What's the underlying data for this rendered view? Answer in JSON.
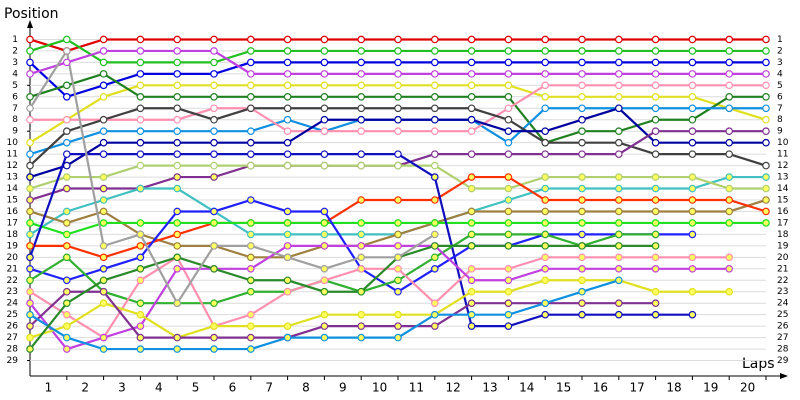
{
  "chart_data": {
    "type": "lap",
    "ylabel": "Position",
    "xlabel": "Laps",
    "x": [
      0,
      1,
      2,
      3,
      4,
      5,
      6,
      7,
      8,
      9,
      10,
      11,
      12,
      13,
      14,
      15,
      16,
      17,
      18,
      19,
      20
    ],
    "xlim": [
      0,
      20
    ],
    "xticks": [
      1,
      2,
      3,
      4,
      5,
      6,
      7,
      8,
      9,
      10,
      11,
      12,
      13,
      14,
      15,
      16,
      17,
      18,
      19,
      20
    ],
    "ylim": [
      0,
      30
    ],
    "yticks": [
      1,
      2,
      3,
      4,
      5,
      6,
      7,
      8,
      9,
      10,
      11,
      12,
      13,
      14,
      15,
      16,
      17,
      18,
      19,
      20,
      21,
      22,
      23,
      24,
      25,
      26,
      27,
      28,
      29
    ],
    "y_inverted": true,
    "grid": true,
    "series": [
      {
        "color": "#e00000",
        "values": [
          1,
          2,
          1,
          1,
          1,
          1,
          1,
          1,
          1,
          1,
          1,
          1,
          1,
          1,
          1,
          1,
          1,
          1,
          1,
          1,
          1
        ]
      },
      {
        "color": "#20c020",
        "values": [
          2,
          1,
          3,
          3,
          3,
          3,
          2,
          2,
          2,
          2,
          2,
          2,
          2,
          2,
          2,
          2,
          2,
          2,
          2,
          2,
          2
        ]
      },
      {
        "color": "#0000e0",
        "values": [
          3,
          6,
          5,
          4,
          4,
          4,
          3,
          3,
          3,
          3,
          3,
          3,
          3,
          3,
          3,
          3,
          3,
          3,
          3,
          3,
          3
        ]
      },
      {
        "color": "#c040e0",
        "values": [
          4,
          3,
          2,
          2,
          2,
          2,
          4,
          4,
          4,
          4,
          4,
          4,
          4,
          4,
          4,
          4,
          4,
          4,
          4,
          4,
          4
        ]
      },
      {
        "color": "#e0e020",
        "values": [
          10,
          8,
          6,
          5,
          5,
          5,
          5,
          5,
          5,
          5,
          5,
          5,
          5,
          5,
          6,
          6,
          6,
          6,
          6,
          7,
          8
        ]
      },
      {
        "color": "#208020",
        "values": [
          6,
          5,
          4,
          6,
          6,
          6,
          6,
          6,
          6,
          6,
          6,
          6,
          6,
          6,
          10,
          9,
          9,
          8,
          8,
          6,
          6
        ]
      },
      {
        "color": "#1090e0",
        "values": [
          11,
          10,
          9,
          9,
          9,
          9,
          9,
          8,
          9,
          8,
          8,
          8,
          8,
          10,
          7,
          7,
          7,
          7,
          7,
          7,
          7
        ]
      },
      {
        "color": "#ff90b0",
        "values": [
          8,
          8,
          8,
          8,
          8,
          7,
          7,
          9,
          9,
          9,
          9,
          9,
          9,
          7,
          5,
          5,
          5,
          5,
          5,
          5,
          5
        ]
      },
      {
        "color": "#404040",
        "values": [
          12,
          9,
          8,
          7,
          7,
          8,
          7,
          7,
          7,
          7,
          7,
          7,
          7,
          8,
          10,
          10,
          10,
          11,
          11,
          11,
          12
        ]
      },
      {
        "color": "#0000a0",
        "values": [
          13,
          12,
          10,
          10,
          10,
          10,
          10,
          10,
          8,
          8,
          8,
          8,
          8,
          9,
          9,
          8,
          7,
          10,
          10,
          10,
          10
        ]
      },
      {
        "color": "#803090",
        "values": [
          15,
          14,
          14,
          14,
          13,
          13,
          12,
          12,
          12,
          12,
          12,
          11,
          11,
          11,
          11,
          11,
          11,
          9,
          9,
          9,
          9
        ]
      },
      {
        "color": "#40c0c0",
        "values": [
          18,
          16,
          15,
          14,
          14,
          16,
          18,
          18,
          18,
          18,
          18,
          17,
          16,
          15,
          14,
          14,
          14,
          14,
          14,
          13,
          13
        ]
      },
      {
        "color": "#b0d070",
        "values": [
          14,
          13,
          13,
          12,
          12,
          12,
          12,
          12,
          12,
          12,
          12,
          12,
          14,
          14,
          13,
          13,
          13,
          13,
          13,
          14,
          14
        ]
      },
      {
        "color": "#a08040",
        "values": [
          16,
          17,
          16,
          18,
          19,
          19,
          20,
          20,
          19,
          19,
          18,
          17,
          16,
          16,
          16,
          16,
          16,
          16,
          16,
          16,
          15
        ]
      },
      {
        "color": "#ff3000",
        "values": [
          19,
          19,
          20,
          19,
          18,
          17,
          17,
          17,
          17,
          15,
          15,
          15,
          13,
          13,
          15,
          15,
          15,
          15,
          15,
          15,
          16
        ]
      },
      {
        "color": "#20e020",
        "values": [
          17,
          18,
          17,
          17,
          17,
          17,
          17,
          17,
          17,
          17,
          17,
          17,
          17,
          17,
          17,
          17,
          17,
          17,
          17,
          17,
          17
        ]
      },
      {
        "color": "#1010c0",
        "values": [
          20,
          11,
          11,
          11,
          11,
          11,
          11,
          11,
          11,
          11,
          11,
          13,
          26,
          26,
          25,
          25,
          25,
          25,
          25,
          null,
          null
        ]
      },
      {
        "color": "#2020ff",
        "values": [
          21,
          22,
          21,
          20,
          16,
          16,
          15,
          16,
          16,
          21,
          23,
          21,
          19,
          19,
          18,
          18,
          18,
          18,
          18,
          null,
          null
        ]
      },
      {
        "color": "#30b030",
        "values": [
          22,
          20,
          23,
          24,
          24,
          24,
          23,
          23,
          22,
          23,
          22,
          20,
          18,
          18,
          18,
          19,
          18,
          18,
          null,
          null,
          null
        ]
      },
      {
        "color": "#ff90b0",
        "values": [
          23,
          25,
          27,
          22,
          20,
          26,
          25,
          23,
          22,
          21,
          21,
          24,
          21,
          21,
          20,
          20,
          20,
          20,
          20,
          20,
          null
        ]
      },
      {
        "color": "#c040e0",
        "values": [
          24,
          28,
          27,
          26,
          21,
          21,
          21,
          19,
          19,
          19,
          19,
          19,
          22,
          22,
          21,
          21,
          21,
          21,
          21,
          21,
          null
        ]
      },
      {
        "color": "#e0e020",
        "values": [
          27,
          26,
          24,
          25,
          27,
          26,
          26,
          26,
          25,
          25,
          25,
          25,
          23,
          23,
          22,
          22,
          22,
          23,
          23,
          23,
          null
        ]
      },
      {
        "color": "#803090",
        "values": [
          26,
          23,
          23,
          27,
          27,
          27,
          27,
          27,
          26,
          26,
          26,
          26,
          24,
          24,
          24,
          24,
          24,
          24,
          null,
          null,
          null
        ]
      },
      {
        "color": "#1090e0",
        "values": [
          25,
          27,
          28,
          28,
          28,
          28,
          28,
          27,
          27,
          27,
          27,
          25,
          25,
          25,
          24,
          23,
          22,
          null,
          null,
          null,
          null
        ]
      },
      {
        "color": "#2a8a2a",
        "values": [
          28,
          24,
          22,
          21,
          20,
          21,
          22,
          22,
          23,
          23,
          20,
          19,
          19,
          19,
          19,
          19,
          19,
          19,
          null,
          null,
          null
        ]
      },
      {
        "color": "#a0a0a0",
        "values": [
          7,
          2,
          19,
          18,
          24,
          19,
          19,
          20,
          21,
          20,
          20,
          18,
          null,
          null,
          null,
          null,
          null,
          null,
          null,
          null,
          null
        ]
      }
    ]
  }
}
